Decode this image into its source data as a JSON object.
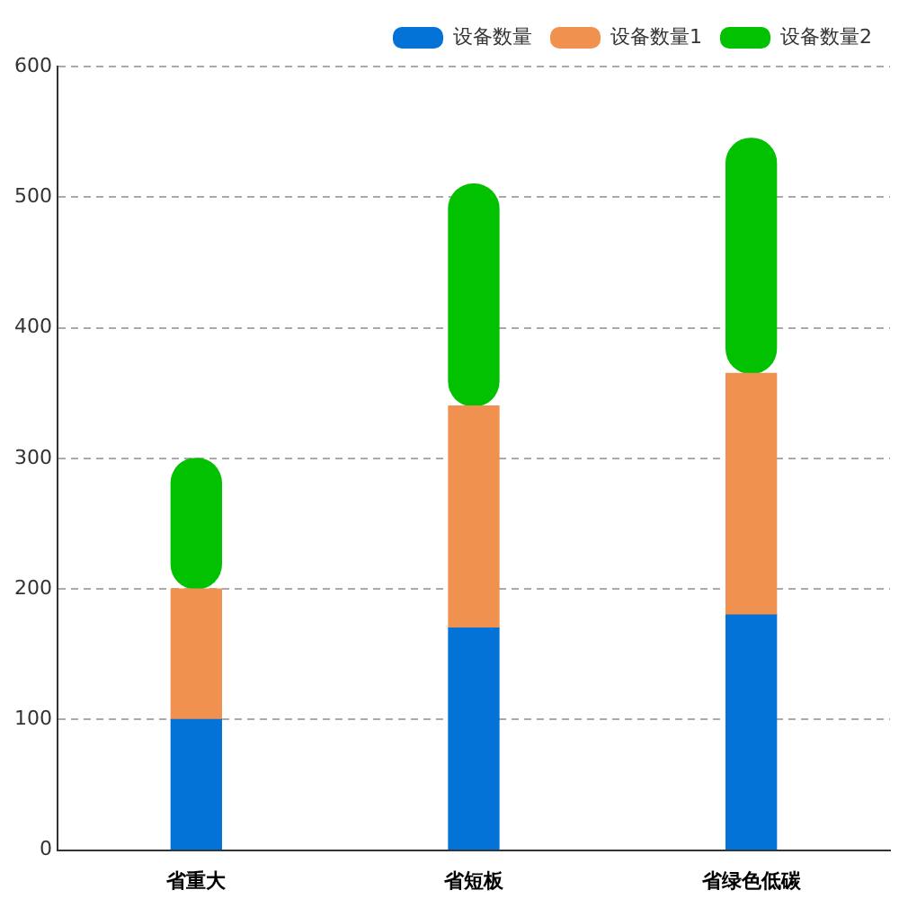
{
  "chart_data": {
    "type": "bar",
    "stacked": true,
    "categories": [
      "省重大",
      "省短板",
      "省绿色低碳"
    ],
    "series": [
      {
        "name": "设备数量",
        "color": "#0473d8",
        "values": [
          100,
          170,
          180
        ]
      },
      {
        "name": "设备数量1",
        "color": "#f09150",
        "values": [
          100,
          170,
          185
        ]
      },
      {
        "name": "设备数量2",
        "color": "#01c101",
        "values": [
          100,
          170,
          180
        ]
      }
    ],
    "ylim": [
      0,
      600
    ],
    "yticks": [
      0,
      100,
      200,
      300,
      400,
      500,
      600
    ],
    "grid": "y",
    "legend": "top right"
  }
}
